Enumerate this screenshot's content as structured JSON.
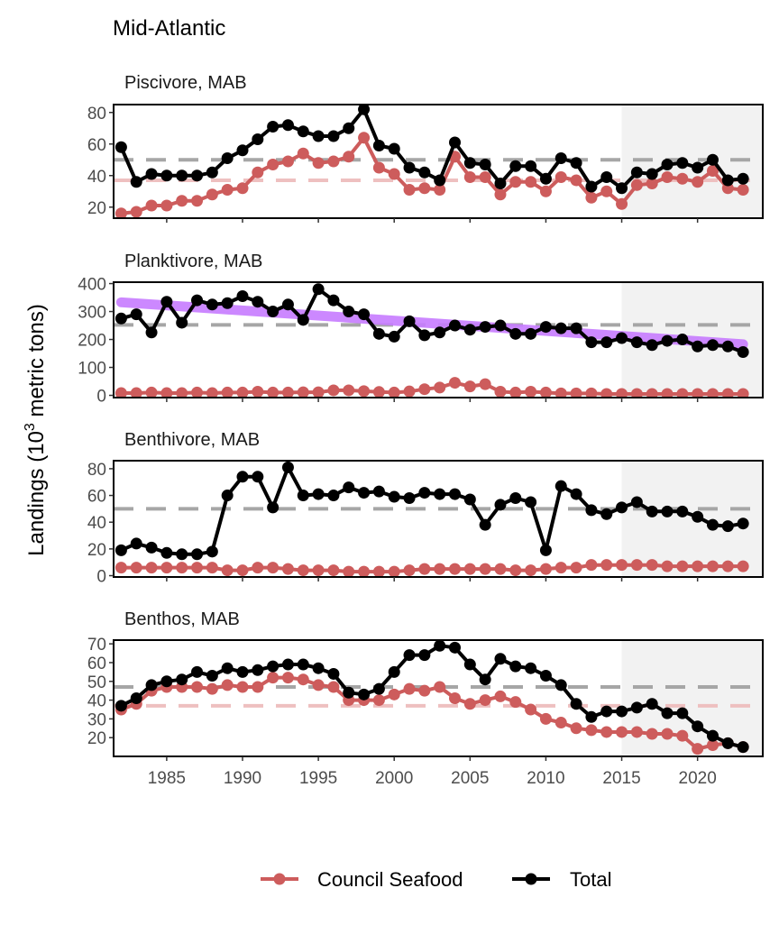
{
  "figure": {
    "title": "Mid-Atlantic",
    "ylabel_prefix": "Landings (10",
    "ylabel_sup": "3",
    "ylabel_suffix": " metric tons)"
  },
  "legend": {
    "position": "bottom",
    "items": [
      {
        "label": "Council Seafood",
        "color": "#cd5c5c"
      },
      {
        "label": "Total",
        "color": "#000000"
      }
    ]
  },
  "chart_data": [
    {
      "type": "line",
      "title": "Piscivore, MAB",
      "xlim": [
        1981.5,
        2024.3
      ],
      "ylim": [
        13,
        85
      ],
      "yticks": [
        20,
        40,
        60,
        80
      ],
      "xticks": [
        1985,
        1990,
        1995,
        2000,
        2005,
        2010,
        2015,
        2020
      ],
      "shade_from": 2015,
      "x": [
        1982,
        1983,
        1984,
        1985,
        1986,
        1987,
        1988,
        1989,
        1990,
        1991,
        1992,
        1993,
        1994,
        1995,
        1996,
        1997,
        1998,
        1999,
        2000,
        2001,
        2002,
        2003,
        2004,
        2005,
        2006,
        2007,
        2008,
        2009,
        2010,
        2011,
        2012,
        2013,
        2014,
        2015,
        2016,
        2017,
        2018,
        2019,
        2020,
        2021,
        2022,
        2023
      ],
      "series": [
        {
          "name": "Council Seafood",
          "color": "#cd5c5c",
          "mean": 37,
          "values": [
            16,
            17,
            21,
            21,
            24,
            24,
            28,
            31,
            32,
            42,
            47,
            49,
            54,
            48,
            49,
            52,
            64,
            45,
            41,
            31,
            32,
            31,
            52,
            39,
            39,
            28,
            36,
            36,
            30,
            39,
            37,
            26,
            30,
            22,
            34,
            35,
            39,
            38,
            36,
            43,
            32,
            31
          ]
        },
        {
          "name": "Total",
          "color": "#000000",
          "mean": 50,
          "values": [
            58,
            36,
            41,
            40,
            40,
            40,
            42,
            51,
            56,
            63,
            71,
            72,
            68,
            65,
            65,
            70,
            82,
            59,
            57,
            45,
            42,
            37,
            61,
            48,
            47,
            35,
            46,
            46,
            38,
            51,
            48,
            33,
            39,
            32,
            42,
            41,
            47,
            48,
            45,
            50,
            37,
            38
          ]
        }
      ]
    },
    {
      "type": "line",
      "title": "Planktivore, MAB",
      "xlim": [
        1981.5,
        2024.3
      ],
      "ylim": [
        -8,
        405
      ],
      "yticks": [
        0,
        100,
        200,
        300,
        400
      ],
      "xticks": [
        1985,
        1990,
        1995,
        2000,
        2005,
        2010,
        2015,
        2020
      ],
      "shade_from": 2015,
      "trend": {
        "color": "#c77cff",
        "x": [
          1982,
          2023
        ],
        "y": [
          333,
          183
        ]
      },
      "x": [
        1982,
        1983,
        1984,
        1985,
        1986,
        1987,
        1988,
        1989,
        1990,
        1991,
        1992,
        1993,
        1994,
        1995,
        1996,
        1997,
        1998,
        1999,
        2000,
        2001,
        2002,
        2003,
        2004,
        2005,
        2006,
        2007,
        2008,
        2009,
        2010,
        2011,
        2012,
        2013,
        2014,
        2015,
        2016,
        2017,
        2018,
        2019,
        2020,
        2021,
        2022,
        2023
      ],
      "series": [
        {
          "name": "Council Seafood",
          "color": "#cd5c5c",
          "mean": null,
          "values": [
            8,
            8,
            10,
            8,
            8,
            10,
            8,
            10,
            10,
            13,
            10,
            10,
            11,
            11,
            18,
            18,
            15,
            12,
            10,
            14,
            22,
            28,
            45,
            32,
            40,
            13,
            10,
            13,
            10,
            7,
            7,
            7,
            5,
            5,
            5,
            5,
            5,
            5,
            5,
            5,
            5,
            5
          ]
        },
        {
          "name": "Total",
          "color": "#000000",
          "mean": 252,
          "values": [
            275,
            290,
            225,
            335,
            260,
            340,
            325,
            330,
            355,
            335,
            300,
            325,
            270,
            380,
            340,
            300,
            290,
            220,
            210,
            265,
            215,
            225,
            250,
            235,
            245,
            250,
            220,
            220,
            245,
            240,
            240,
            190,
            190,
            205,
            190,
            180,
            195,
            200,
            175,
            180,
            175,
            155
          ]
        }
      ]
    },
    {
      "type": "line",
      "title": "Benthivore, MAB",
      "xlim": [
        1981.5,
        2024.3
      ],
      "ylim": [
        -1,
        86
      ],
      "yticks": [
        0,
        20,
        40,
        60,
        80
      ],
      "xticks": [
        1985,
        1990,
        1995,
        2000,
        2005,
        2010,
        2015,
        2020
      ],
      "shade_from": 2015,
      "x": [
        1982,
        1983,
        1984,
        1985,
        1986,
        1987,
        1988,
        1989,
        1990,
        1991,
        1992,
        1993,
        1994,
        1995,
        1996,
        1997,
        1998,
        1999,
        2000,
        2001,
        2002,
        2003,
        2004,
        2005,
        2006,
        2007,
        2008,
        2009,
        2010,
        2011,
        2012,
        2013,
        2014,
        2015,
        2016,
        2017,
        2018,
        2019,
        2020,
        2021,
        2022,
        2023
      ],
      "series": [
        {
          "name": "Council Seafood",
          "color": "#cd5c5c",
          "mean": null,
          "values": [
            6,
            6,
            6,
            6,
            6,
            6,
            6,
            4,
            4,
            6,
            6,
            5,
            4,
            4,
            4,
            3,
            3,
            3,
            3,
            4,
            5,
            5,
            5,
            5,
            5,
            5,
            4,
            4,
            5,
            6,
            6,
            8,
            8,
            8,
            8,
            8,
            7,
            7,
            7,
            7,
            7,
            7
          ]
        },
        {
          "name": "Total",
          "color": "#000000",
          "mean": 50,
          "values": [
            19,
            24,
            21,
            17,
            16,
            16,
            18,
            60,
            74,
            74,
            51,
            81,
            60,
            61,
            60,
            66,
            62,
            63,
            59,
            58,
            62,
            61,
            61,
            57,
            38,
            53,
            58,
            55,
            19,
            67,
            61,
            49,
            46,
            51,
            55,
            48,
            48,
            48,
            44,
            38,
            37,
            39
          ]
        }
      ]
    },
    {
      "type": "line",
      "title": "Benthos, MAB",
      "xlim": [
        1981.5,
        2024.3
      ],
      "ylim": [
        10,
        72
      ],
      "yticks": [
        20,
        30,
        40,
        50,
        60,
        70
      ],
      "xticks": [
        1985,
        1990,
        1995,
        2000,
        2005,
        2010,
        2015,
        2020
      ],
      "shade_from": 2015,
      "x": [
        1982,
        1983,
        1984,
        1985,
        1986,
        1987,
        1988,
        1989,
        1990,
        1991,
        1992,
        1993,
        1994,
        1995,
        1996,
        1997,
        1998,
        1999,
        2000,
        2001,
        2002,
        2003,
        2004,
        2005,
        2006,
        2007,
        2008,
        2009,
        2010,
        2011,
        2012,
        2013,
        2014,
        2015,
        2016,
        2017,
        2018,
        2019,
        2020,
        2021,
        2022,
        2023
      ],
      "series": [
        {
          "name": "Council Seafood",
          "color": "#cd5c5c",
          "mean": 37,
          "values": [
            35,
            38,
            45,
            47,
            47,
            47,
            46,
            48,
            47,
            47,
            52,
            52,
            51,
            48,
            47,
            40,
            40,
            40,
            43,
            46,
            45,
            47,
            41,
            38,
            40,
            42,
            39,
            35,
            30,
            28,
            25,
            24,
            23,
            23,
            23,
            22,
            22,
            21,
            14,
            16,
            17,
            15
          ]
        },
        {
          "name": "Total",
          "color": "#000000",
          "mean": 47,
          "values": [
            37,
            41,
            48,
            50,
            51,
            55,
            53,
            57,
            55,
            56,
            58,
            59,
            59,
            57,
            54,
            44,
            43,
            46,
            55,
            64,
            64,
            69,
            68,
            59,
            51,
            62,
            58,
            57,
            53,
            48,
            38,
            31,
            34,
            34,
            36,
            38,
            33,
            33,
            26,
            21,
            17,
            15
          ]
        }
      ]
    }
  ]
}
